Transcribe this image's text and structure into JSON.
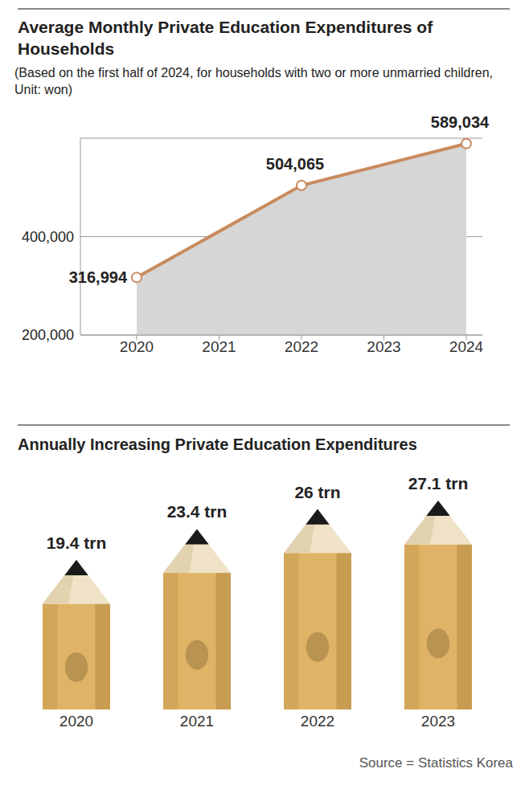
{
  "chart_data": [
    {
      "type": "area",
      "title": "Average Monthly Private Education Expenditures of Households",
      "subtitle": "(Based on the first half of 2024, for households with two or more unmarried children, Unit: won)",
      "categories": [
        "2020",
        "2021",
        "2022",
        "2023",
        "2024"
      ],
      "values": [
        316994,
        null,
        504065,
        null,
        589034
      ],
      "value_labels": [
        "316,994",
        null,
        "504,065",
        null,
        "589,034"
      ],
      "data_labels": true,
      "color": "#c98b5e",
      "ylim": [
        200000,
        600000
      ],
      "yticks": [
        {
          "value": 200000,
          "label": "200,000"
        },
        {
          "value": 400000,
          "label": "400,000"
        }
      ],
      "grid": true
    },
    {
      "type": "bar",
      "title": "Annually Increasing Private Education Expenditures",
      "categories": [
        "2020",
        "2021",
        "2022",
        "2023"
      ],
      "values": [
        19.4,
        23.4,
        26,
        27.1
      ],
      "value_labels": [
        "19.4 trn",
        "23.4 trn",
        "26 trn",
        "27.1 trn"
      ],
      "data_labels": true,
      "tick_labels": "x",
      "color": "#e0b466"
    }
  ],
  "source": "Source = Statistics Korea"
}
